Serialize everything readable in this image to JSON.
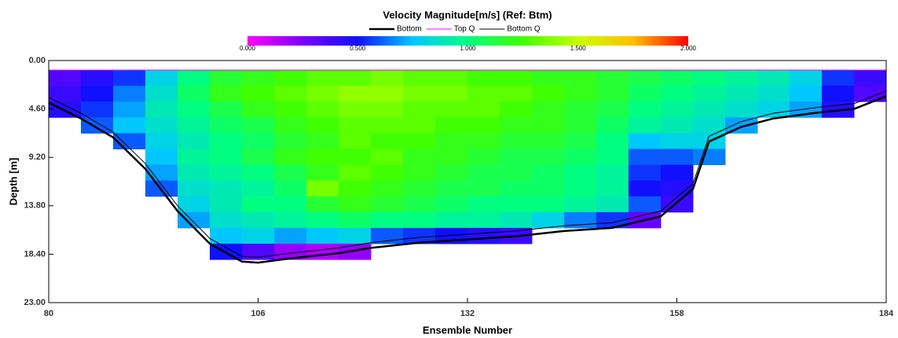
{
  "chart_data": {
    "type": "heatmap",
    "title": "Velocity Magnitude[m/s] (Ref: Btm)",
    "x_label": "Ensemble Number",
    "y_label": "Depth [m]",
    "xlim": [
      80,
      184
    ],
    "ylim": [
      0,
      23
    ],
    "y_inverted": true,
    "xticks": [
      80,
      106,
      132,
      158,
      184
    ],
    "yticks": [
      {
        "value": 0,
        "label": "0.00"
      },
      {
        "value": 4.6,
        "label": "4.60"
      },
      {
        "value": 9.2,
        "label": "9.20"
      },
      {
        "value": 13.8,
        "label": "13.80"
      },
      {
        "value": 18.4,
        "label": "18.40"
      },
      {
        "value": 23,
        "label": "23.00"
      }
    ],
    "clim": [
      0,
      2
    ],
    "colormap": [
      "#ff00ff",
      "#7a00ff",
      "#1010ff",
      "#00c8ff",
      "#00ff80",
      "#40ff00",
      "#c8ff00",
      "#ffc000",
      "#ff0000"
    ],
    "colorbar_ticks": [
      {
        "value": 0,
        "label": "0.000"
      },
      {
        "value": 0.5,
        "label": "0.500"
      },
      {
        "value": 1,
        "label": "1.000"
      },
      {
        "value": 1.5,
        "label": "1.500"
      },
      {
        "value": 2,
        "label": "2.000"
      }
    ],
    "x_bins": [
      80,
      84,
      88,
      92,
      96,
      100,
      104,
      108,
      112,
      116,
      120,
      124,
      128,
      132,
      136,
      140,
      144,
      148,
      152,
      156,
      160,
      164,
      168,
      172,
      176,
      180,
      184
    ],
    "y_bins": [
      0.9,
      2.4,
      3.9,
      5.4,
      6.9,
      8.4,
      9.9,
      11.4,
      12.9,
      14.4,
      15.9,
      17.4,
      18.9
    ],
    "cells": [
      [
        0.35,
        0.4,
        0.45,
        null,
        null,
        null,
        null,
        null,
        null,
        null,
        null,
        null
      ],
      [
        0.45,
        0.5,
        0.55,
        0.6,
        null,
        null,
        null,
        null,
        null,
        null,
        null,
        null
      ],
      [
        0.55,
        0.65,
        0.7,
        0.75,
        0.6,
        null,
        null,
        null,
        null,
        null,
        null,
        null
      ],
      [
        0.8,
        0.85,
        0.9,
        0.85,
        0.8,
        0.75,
        0.7,
        0.6,
        null,
        null,
        null,
        null
      ],
      [
        1.0,
        1.05,
        1.0,
        0.95,
        0.9,
        0.95,
        0.9,
        0.85,
        0.8,
        0.7,
        null,
        null
      ],
      [
        1.15,
        1.2,
        1.1,
        1.05,
        1.0,
        1.0,
        0.95,
        0.9,
        0.9,
        0.85,
        0.75,
        0.5
      ],
      [
        1.2,
        1.25,
        1.2,
        1.1,
        1.05,
        1.1,
        1.0,
        0.95,
        1.0,
        0.9,
        0.8,
        0.35
      ],
      [
        1.25,
        1.3,
        1.25,
        1.2,
        1.15,
        1.2,
        1.1,
        1.05,
        1.0,
        0.95,
        0.7,
        0.2
      ],
      [
        1.3,
        1.35,
        1.3,
        1.25,
        1.2,
        1.25,
        1.2,
        1.35,
        1.15,
        1.0,
        0.75,
        0.15
      ],
      [
        1.3,
        1.4,
        1.35,
        1.3,
        1.3,
        1.25,
        1.3,
        1.25,
        1.2,
        1.05,
        0.8,
        0.2
      ],
      [
        1.35,
        1.4,
        1.35,
        1.3,
        1.25,
        1.3,
        1.25,
        1.2,
        1.15,
        1.0,
        0.6,
        null
      ],
      [
        1.3,
        1.35,
        1.3,
        1.3,
        1.25,
        1.2,
        1.2,
        1.15,
        1.1,
        1.0,
        0.55,
        null
      ],
      [
        1.3,
        1.35,
        1.3,
        1.25,
        1.2,
        1.2,
        1.15,
        1.1,
        1.05,
        0.95,
        0.5,
        null
      ],
      [
        1.25,
        1.3,
        1.3,
        1.25,
        1.2,
        1.15,
        1.1,
        1.1,
        1.0,
        0.95,
        0.45,
        null
      ],
      [
        1.25,
        1.3,
        1.25,
        1.2,
        1.15,
        1.1,
        1.1,
        1.05,
        1.0,
        0.9,
        0.4,
        null
      ],
      [
        1.2,
        1.25,
        1.2,
        1.2,
        1.15,
        1.1,
        1.05,
        1.05,
        1.0,
        0.8,
        null,
        null
      ],
      [
        1.2,
        1.2,
        1.15,
        1.15,
        1.1,
        1.05,
        1.0,
        1.0,
        0.95,
        0.65,
        null,
        null
      ],
      [
        1.15,
        1.15,
        1.1,
        1.05,
        1.0,
        1.0,
        0.95,
        0.95,
        0.9,
        0.55,
        null,
        null
      ],
      [
        1.1,
        1.05,
        1.0,
        0.95,
        0.75,
        0.6,
        0.55,
        0.5,
        0.6,
        0.3,
        null,
        null
      ],
      [
        1.05,
        1.0,
        0.95,
        0.9,
        0.8,
        0.6,
        0.5,
        0.45,
        0.4,
        null,
        null,
        null
      ],
      [
        1.0,
        0.95,
        0.9,
        0.85,
        0.8,
        0.65,
        null,
        null,
        null,
        null,
        null,
        null
      ],
      [
        0.95,
        0.9,
        0.85,
        0.7,
        null,
        null,
        null,
        null,
        null,
        null,
        null,
        null
      ],
      [
        0.9,
        0.85,
        0.8,
        null,
        null,
        null,
        null,
        null,
        null,
        null,
        null,
        null
      ],
      [
        0.8,
        0.75,
        0.7,
        null,
        null,
        null,
        null,
        null,
        null,
        null,
        null,
        null
      ],
      [
        0.55,
        0.5,
        0.45,
        null,
        null,
        null,
        null,
        null,
        null,
        null,
        null,
        null
      ],
      [
        0.4,
        0.35,
        null,
        null,
        null,
        null,
        null,
        null,
        null,
        null,
        null,
        null
      ]
    ],
    "legend": "top",
    "series": [
      {
        "name": "Bottom",
        "color": "#000000",
        "width": 2.5,
        "x": [
          80,
          84,
          88,
          92,
          96,
          100,
          104,
          106,
          110,
          116,
          120,
          126,
          132,
          138,
          144,
          150,
          156,
          160,
          162,
          166,
          170,
          176,
          180,
          184
        ],
        "values": [
          4.0,
          5.5,
          7.3,
          10.3,
          14.3,
          17.4,
          19.1,
          19.2,
          18.8,
          18.3,
          17.8,
          17.3,
          17.0,
          16.7,
          16.2,
          15.9,
          14.8,
          12.2,
          7.7,
          6.3,
          5.5,
          4.9,
          4.6,
          3.4
        ]
      },
      {
        "name": "Top Q",
        "color": "#ff00ff",
        "width": 1,
        "x": [
          80,
          184
        ],
        "values": [
          0.9,
          0.9
        ]
      },
      {
        "name": "Bottom Q",
        "color": "#000000",
        "width": 1,
        "x": [
          80,
          84,
          88,
          92,
          96,
          100,
          104,
          106,
          110,
          116,
          120,
          126,
          132,
          138,
          144,
          150,
          156,
          160,
          162,
          166,
          170,
          176,
          180,
          184
        ],
        "values": [
          3.5,
          5.0,
          6.8,
          9.8,
          13.8,
          16.9,
          18.6,
          18.7,
          18.3,
          17.8,
          17.3,
          16.8,
          16.5,
          16.2,
          15.7,
          15.4,
          14.3,
          11.7,
          7.2,
          5.8,
          5.0,
          4.4,
          4.1,
          2.9
        ]
      }
    ]
  }
}
